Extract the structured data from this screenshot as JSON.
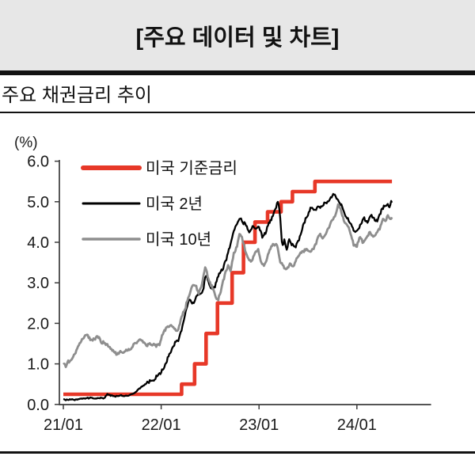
{
  "page": {
    "title": "[주요 데이터 및 차트]",
    "section_title": "주요 채권금리 추이"
  },
  "colors": {
    "header_bg": "#E7E7E7",
    "rule": "#121212",
    "axis": "#3C3C3C",
    "tick_label": "#1A1A1A",
    "fed_red": "#E73828",
    "us2y_black": "#000000",
    "us10y_gray": "#8E8E8E"
  },
  "chart_data": {
    "type": "line",
    "title": "주요 채권금리 추이",
    "ylabel": "(%)",
    "ylim": [
      0.0,
      6.0
    ],
    "grid": false,
    "legend_position": "upper-left",
    "y_ticks": {
      "values": [
        6,
        5,
        4,
        3,
        2,
        1,
        0
      ],
      "labels": [
        "6.0",
        "5.0",
        "4.0",
        "3.0",
        "2.0",
        "1.0",
        "0.0"
      ]
    },
    "x_unit": "months since 2021-01",
    "x_ticks": [
      {
        "month": 0,
        "label": "21/01"
      },
      {
        "month": 12,
        "label": "22/01"
      },
      {
        "month": 24,
        "label": "23/01"
      },
      {
        "month": 36,
        "label": "24/01"
      }
    ],
    "x_axis_end_month": 45.1,
    "data_end_month": 40.3,
    "series": [
      {
        "name": "미국 기준금리",
        "color": "#E73828",
        "style": "step",
        "line_width": 4.6,
        "legend_line_width": 6,
        "points": [
          [
            0,
            0.25
          ],
          [
            14.5,
            0.5
          ],
          [
            16.1,
            1.0
          ],
          [
            17.5,
            1.75
          ],
          [
            18.9,
            2.5
          ],
          [
            20.7,
            3.25
          ],
          [
            22.1,
            4.0
          ],
          [
            23.5,
            4.5
          ],
          [
            25.05,
            4.75
          ],
          [
            26.7,
            5.0
          ],
          [
            28.1,
            5.25
          ],
          [
            30.85,
            5.5
          ]
        ]
      },
      {
        "name": "미국 2년",
        "color": "#000000",
        "style": "line",
        "line_width": 2.3,
        "legend_line_width": 3,
        "jitter": 0.045,
        "points": [
          [
            0,
            0.12
          ],
          [
            1,
            0.11
          ],
          [
            2,
            0.13
          ],
          [
            3,
            0.16
          ],
          [
            4,
            0.15
          ],
          [
            5,
            0.16
          ],
          [
            5.4,
            0.26
          ],
          [
            5.8,
            0.21
          ],
          [
            7,
            0.21
          ],
          [
            8,
            0.22
          ],
          [
            8.7,
            0.28
          ],
          [
            9.3,
            0.38
          ],
          [
            10,
            0.5
          ],
          [
            10.5,
            0.52
          ],
          [
            11,
            0.62
          ],
          [
            11.7,
            0.72
          ],
          [
            12,
            0.8
          ],
          [
            12.5,
            1.0
          ],
          [
            13,
            1.2
          ],
          [
            13.7,
            1.55
          ],
          [
            14.1,
            1.52
          ],
          [
            14.6,
            1.95
          ],
          [
            15.1,
            2.35
          ],
          [
            15.5,
            2.6
          ],
          [
            16,
            2.5
          ],
          [
            16.5,
            2.7
          ],
          [
            17.1,
            2.8
          ],
          [
            17.45,
            3.2
          ],
          [
            17.8,
            3.0
          ],
          [
            18.2,
            2.85
          ],
          [
            18.6,
            2.9
          ],
          [
            19.1,
            3.2
          ],
          [
            19.5,
            3.35
          ],
          [
            20,
            3.55
          ],
          [
            20.4,
            3.9
          ],
          [
            20.8,
            4.2
          ],
          [
            21.3,
            4.45
          ],
          [
            21.7,
            4.62
          ],
          [
            22,
            4.5
          ],
          [
            22.4,
            4.4
          ],
          [
            22.8,
            4.25
          ],
          [
            23.2,
            4.42
          ],
          [
            23.6,
            4.3
          ],
          [
            24,
            4.42
          ],
          [
            24.4,
            4.15
          ],
          [
            24.8,
            4.2
          ],
          [
            25.2,
            4.5
          ],
          [
            25.7,
            4.65
          ],
          [
            26.1,
            4.85
          ],
          [
            26.35,
            5.05
          ],
          [
            26.6,
            4.6
          ],
          [
            26.85,
            3.85
          ],
          [
            27.1,
            4.05
          ],
          [
            27.4,
            3.8
          ],
          [
            27.7,
            4.1
          ],
          [
            28,
            3.95
          ],
          [
            28.4,
            3.85
          ],
          [
            28.8,
            4.05
          ],
          [
            29.2,
            4.25
          ],
          [
            29.6,
            4.5
          ],
          [
            30,
            4.7
          ],
          [
            30.4,
            4.87
          ],
          [
            30.8,
            4.75
          ],
          [
            31.2,
            4.9
          ],
          [
            31.6,
            4.85
          ],
          [
            32,
            4.95
          ],
          [
            32.4,
            5.0
          ],
          [
            32.8,
            5.1
          ],
          [
            33.3,
            5.18
          ],
          [
            33.7,
            5.05
          ],
          [
            34.1,
            4.9
          ],
          [
            34.5,
            4.7
          ],
          [
            34.9,
            4.6
          ],
          [
            35.3,
            4.4
          ],
          [
            35.7,
            4.25
          ],
          [
            36.1,
            4.32
          ],
          [
            36.5,
            4.45
          ],
          [
            36.9,
            4.6
          ],
          [
            37.3,
            4.5
          ],
          [
            37.7,
            4.65
          ],
          [
            38.1,
            4.58
          ],
          [
            38.5,
            4.55
          ],
          [
            38.9,
            4.7
          ],
          [
            39.3,
            4.9
          ],
          [
            39.7,
            4.95
          ],
          [
            40,
            4.88
          ],
          [
            40.3,
            5.0
          ]
        ]
      },
      {
        "name": "미국 10년",
        "color": "#8E8E8E",
        "style": "line",
        "line_width": 2.8,
        "legend_line_width": 3.5,
        "jitter": 0.045,
        "points": [
          [
            0,
            1.05
          ],
          [
            0.3,
            0.95
          ],
          [
            0.7,
            1.05
          ],
          [
            1,
            1.1
          ],
          [
            1.4,
            1.25
          ],
          [
            1.8,
            1.4
          ],
          [
            2.2,
            1.6
          ],
          [
            2.6,
            1.7
          ],
          [
            3,
            1.68
          ],
          [
            3.4,
            1.58
          ],
          [
            3.8,
            1.62
          ],
          [
            4.2,
            1.65
          ],
          [
            4.6,
            1.58
          ],
          [
            5,
            1.52
          ],
          [
            5.4,
            1.45
          ],
          [
            5.8,
            1.4
          ],
          [
            6.2,
            1.3
          ],
          [
            6.6,
            1.22
          ],
          [
            7,
            1.3
          ],
          [
            7.4,
            1.28
          ],
          [
            7.8,
            1.32
          ],
          [
            8.2,
            1.38
          ],
          [
            8.6,
            1.48
          ],
          [
            9,
            1.52
          ],
          [
            9.4,
            1.62
          ],
          [
            9.8,
            1.55
          ],
          [
            10.2,
            1.45
          ],
          [
            10.6,
            1.55
          ],
          [
            11,
            1.45
          ],
          [
            11.4,
            1.42
          ],
          [
            11.8,
            1.52
          ],
          [
            12,
            1.65
          ],
          [
            12.4,
            1.8
          ],
          [
            12.8,
            1.92
          ],
          [
            13.2,
            1.98
          ],
          [
            13.6,
            1.85
          ],
          [
            14,
            1.82
          ],
          [
            14.5,
            2.15
          ],
          [
            15,
            2.4
          ],
          [
            15.4,
            2.7
          ],
          [
            15.8,
            2.9
          ],
          [
            16.2,
            2.95
          ],
          [
            16.6,
            2.75
          ],
          [
            17,
            2.95
          ],
          [
            17.45,
            3.4
          ],
          [
            17.8,
            3.1
          ],
          [
            18.2,
            2.9
          ],
          [
            18.6,
            2.7
          ],
          [
            19,
            2.6
          ],
          [
            19.4,
            2.85
          ],
          [
            19.8,
            3.2
          ],
          [
            20.2,
            3.45
          ],
          [
            20.5,
            3.3
          ],
          [
            20.9,
            3.7
          ],
          [
            21.3,
            3.95
          ],
          [
            21.6,
            4.2
          ],
          [
            21.9,
            4.1
          ],
          [
            22.3,
            3.8
          ],
          [
            22.7,
            3.6
          ],
          [
            23.1,
            3.5
          ],
          [
            23.5,
            3.75
          ],
          [
            23.9,
            3.85
          ],
          [
            24.2,
            3.5
          ],
          [
            24.6,
            3.4
          ],
          [
            25,
            3.65
          ],
          [
            25.4,
            3.85
          ],
          [
            25.8,
            3.95
          ],
          [
            26.2,
            3.95
          ],
          [
            26.6,
            3.5
          ],
          [
            27,
            3.4
          ],
          [
            27.4,
            3.35
          ],
          [
            27.8,
            3.45
          ],
          [
            28.2,
            3.4
          ],
          [
            28.6,
            3.6
          ],
          [
            29,
            3.7
          ],
          [
            29.4,
            3.8
          ],
          [
            29.8,
            3.85
          ],
          [
            30.2,
            3.75
          ],
          [
            30.6,
            3.85
          ],
          [
            31,
            4.0
          ],
          [
            31.4,
            4.2
          ],
          [
            31.8,
            4.1
          ],
          [
            32.2,
            4.25
          ],
          [
            32.6,
            4.35
          ],
          [
            33,
            4.55
          ],
          [
            33.4,
            4.7
          ],
          [
            33.7,
            4.9
          ],
          [
            34,
            4.8
          ],
          [
            34.4,
            4.55
          ],
          [
            34.8,
            4.4
          ],
          [
            35.2,
            4.25
          ],
          [
            35.6,
            3.95
          ],
          [
            36,
            3.9
          ],
          [
            36.4,
            4.15
          ],
          [
            36.8,
            4.0
          ],
          [
            37.2,
            4.1
          ],
          [
            37.6,
            4.25
          ],
          [
            38,
            4.15
          ],
          [
            38.4,
            4.2
          ],
          [
            38.8,
            4.35
          ],
          [
            39.2,
            4.6
          ],
          [
            39.5,
            4.5
          ],
          [
            39.8,
            4.65
          ],
          [
            40.1,
            4.55
          ],
          [
            40.3,
            4.65
          ]
        ]
      }
    ]
  }
}
